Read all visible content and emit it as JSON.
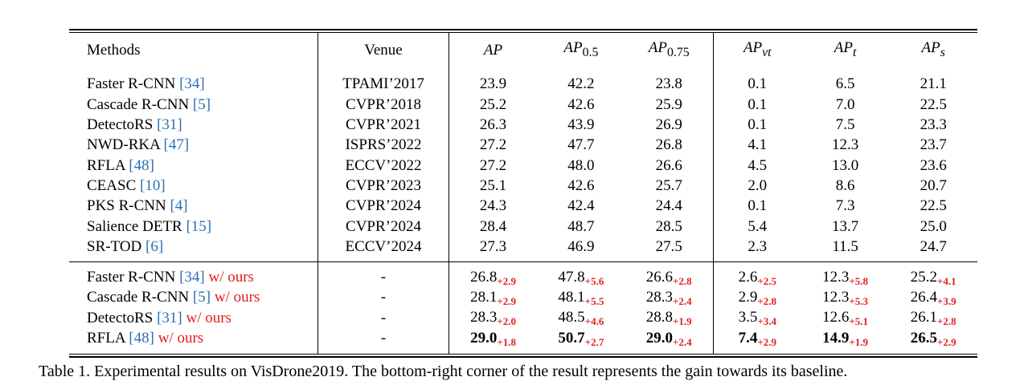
{
  "table": {
    "headers": {
      "methods": "Methods",
      "venue": "Venue",
      "ap": "AP",
      "ap05_main": "AP",
      "ap05_sub": "0.5",
      "ap075_main": "AP",
      "ap075_sub": "0.75",
      "apvt_main": "AP",
      "apvt_sub": "vt",
      "apt_main": "AP",
      "apt_sub": "t",
      "aps_main": "AP",
      "aps_sub": "s"
    },
    "rows": [
      {
        "name": "Faster R-CNN ",
        "ref": "[34]",
        "venue": "TPAMI’2017",
        "v": [
          "23.9",
          "42.2",
          "23.8",
          "0.1",
          "6.5",
          "21.1"
        ]
      },
      {
        "name": "Cascade R-CNN ",
        "ref": "[5]",
        "venue": "CVPR’2018",
        "v": [
          "25.2",
          "42.6",
          "25.9",
          "0.1",
          "7.0",
          "22.5"
        ]
      },
      {
        "name": "DetectoRS ",
        "ref": "[31]",
        "venue": "CVPR’2021",
        "v": [
          "26.3",
          "43.9",
          "26.9",
          "0.1",
          "7.5",
          "23.3"
        ]
      },
      {
        "name": "NWD-RKA ",
        "ref": "[47]",
        "venue": "ISPRS’2022",
        "v": [
          "27.2",
          "47.7",
          "26.8",
          "4.1",
          "12.3",
          "23.7"
        ]
      },
      {
        "name": "RFLA ",
        "ref": "[48]",
        "venue": "ECCV’2022",
        "v": [
          "27.2",
          "48.0",
          "26.6",
          "4.5",
          "13.0",
          "23.6"
        ]
      },
      {
        "name": "CEASC ",
        "ref": "[10]",
        "venue": "CVPR’2023",
        "v": [
          "25.1",
          "42.6",
          "25.7",
          "2.0",
          "8.6",
          "20.7"
        ]
      },
      {
        "name": "PKS R-CNN ",
        "ref": "[4]",
        "venue": "CVPR’2024",
        "v": [
          "24.3",
          "42.4",
          "24.4",
          "0.1",
          "7.3",
          "22.5"
        ]
      },
      {
        "name": "Salience DETR ",
        "ref": "[15]",
        "venue": "CVPR’2024",
        "v": [
          "28.4",
          "48.7",
          "28.5",
          "5.4",
          "13.7",
          "25.0"
        ]
      },
      {
        "name": "SR-TOD ",
        "ref": "[6]",
        "venue": "ECCV’2024",
        "v": [
          "27.3",
          "46.9",
          "27.5",
          "2.3",
          "11.5",
          "24.7"
        ]
      }
    ],
    "ours_rows": [
      {
        "name": "Faster R-CNN ",
        "ref": "[34]",
        "suffix": " w/ ours",
        "venue": "-",
        "v": [
          "26.8",
          "47.8",
          "26.6",
          "2.6",
          "12.3",
          "25.2"
        ],
        "g": [
          "+2.9",
          "+5.6",
          "+2.8",
          "+2.5",
          "+5.8",
          "+4.1"
        ]
      },
      {
        "name": "Cascade R-CNN ",
        "ref": "[5]",
        "suffix": " w/ ours",
        "venue": "-",
        "v": [
          "28.1",
          "48.1",
          "28.3",
          "2.9",
          "12.3",
          "26.4"
        ],
        "g": [
          "+2.9",
          "+5.5",
          "+2.4",
          "+2.8",
          "+5.3",
          "+3.9"
        ]
      },
      {
        "name": "DetectoRS ",
        "ref": "[31]",
        "suffix": " w/ ours",
        "venue": "-",
        "v": [
          "28.3",
          "48.5",
          "28.8",
          "3.5",
          "12.6",
          "26.1"
        ],
        "g": [
          "+2.0",
          "+4.6",
          "+1.9",
          "+3.4",
          "+5.1",
          "+2.8"
        ]
      },
      {
        "name": "RFLA ",
        "ref": "[48]",
        "suffix": " w/ ours",
        "venue": "-",
        "v": [
          "29.0",
          "50.7",
          "29.0",
          "7.4",
          "14.9",
          "26.5"
        ],
        "g": [
          "+1.8",
          "+2.7",
          "+2.4",
          "+2.9",
          "+1.9",
          "+2.9"
        ],
        "best": true
      }
    ]
  },
  "caption": "Table 1. Experimental results on VisDrone2019. The bottom-right corner of the result represents the gain towards its baseline.",
  "colors": {
    "ref": "#2e6fb5",
    "ours": "#e0201f"
  }
}
